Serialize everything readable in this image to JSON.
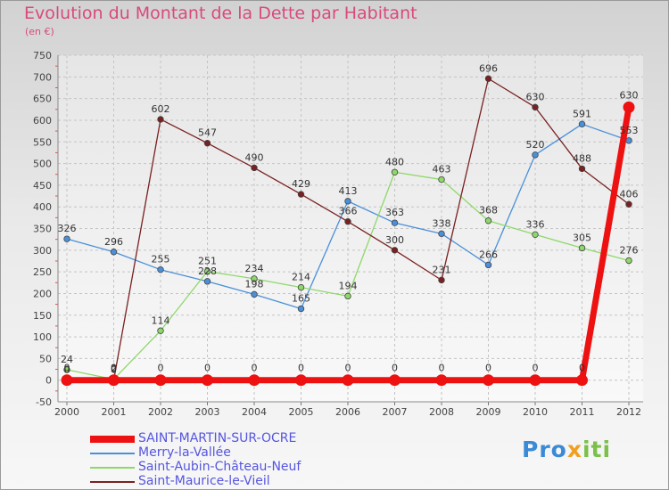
{
  "chart_data": {
    "type": "line",
    "title": "Evolution du Montant de la Dette par Habitant",
    "unit": "(en €)",
    "x": [
      "2000",
      "2001",
      "2002",
      "2003",
      "2004",
      "2005",
      "2006",
      "2007",
      "2008",
      "2009",
      "2010",
      "2011",
      "2012"
    ],
    "ylim": [
      -50,
      750
    ],
    "yticks": [
      -50,
      0,
      50,
      100,
      150,
      200,
      250,
      300,
      350,
      400,
      450,
      500,
      550,
      600,
      650,
      700,
      750
    ],
    "grid": true,
    "legend_position": "bottom-left",
    "series": [
      {
        "name": "SAINT-MARTIN-SUR-OCRE",
        "color": "#ee1111",
        "values": [
          0,
          0,
          0,
          0,
          0,
          0,
          0,
          0,
          0,
          0,
          0,
          0,
          630
        ]
      },
      {
        "name": "Merry-la-Vallée",
        "color": "#4a90d9",
        "values": [
          326,
          296,
          255,
          228,
          198,
          165,
          413,
          363,
          338,
          266,
          520,
          591,
          553
        ]
      },
      {
        "name": "Saint-Aubin-Château-Neuf",
        "color": "#8ed86a",
        "values": [
          24,
          2,
          114,
          251,
          234,
          214,
          194,
          480,
          463,
          368,
          336,
          305,
          276
        ]
      },
      {
        "name": "Saint-Maurice-le-Vieil",
        "color": "#7a2020",
        "values": [
          0,
          0,
          602,
          547,
          490,
          429,
          366,
          300,
          231,
          696,
          630,
          488,
          406
        ]
      }
    ]
  },
  "brand": {
    "p1": "Pro",
    "p2": "x",
    "p3": "iti"
  }
}
